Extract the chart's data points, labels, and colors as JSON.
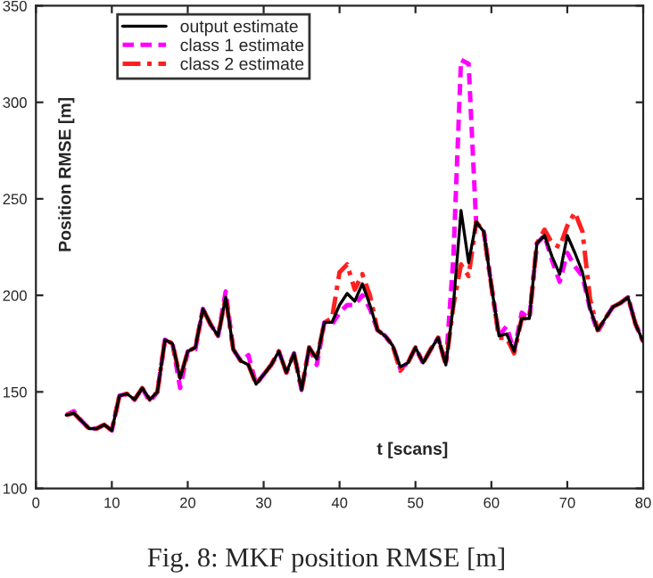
{
  "chart_data": {
    "type": "line",
    "xlabel": "t [scans]",
    "ylabel": "Position RMSE [m]",
    "x": [
      4,
      5,
      6,
      7,
      8,
      9,
      10,
      11,
      12,
      13,
      14,
      15,
      16,
      17,
      18,
      19,
      20,
      21,
      22,
      23,
      24,
      25,
      26,
      27,
      28,
      29,
      30,
      31,
      32,
      33,
      34,
      35,
      36,
      37,
      38,
      39,
      40,
      41,
      42,
      43,
      44,
      45,
      46,
      47,
      48,
      49,
      50,
      51,
      52,
      53,
      54,
      55,
      56,
      57,
      58,
      59,
      60,
      61,
      62,
      63,
      64,
      65,
      66,
      67,
      68,
      69,
      70,
      71,
      72,
      73,
      74,
      75,
      76,
      77,
      78,
      79,
      80
    ],
    "series": [
      {
        "name": "output estimate",
        "color": "#000000",
        "line_style": "solid",
        "values": [
          138,
          139,
          135,
          131,
          131,
          133,
          130,
          148,
          149,
          146,
          152,
          146,
          150,
          177,
          175,
          157,
          171,
          173,
          193,
          185,
          179,
          199,
          172,
          166,
          164,
          154,
          159,
          164,
          171,
          160,
          170,
          151,
          173,
          167,
          186,
          186,
          195,
          201,
          197,
          206,
          195,
          182,
          179,
          174,
          163,
          165,
          173,
          165,
          172,
          178,
          164,
          195,
          244,
          217,
          238,
          233,
          205,
          179,
          180,
          171,
          188,
          188,
          227,
          231,
          220,
          211,
          231,
          222,
          212,
          193,
          182,
          188,
          194,
          196,
          199,
          185,
          176
        ]
      },
      {
        "name": "class 1 estimate",
        "color": "#ff00ff",
        "line_style": "dashed",
        "values": [
          138,
          140,
          135,
          131,
          131,
          133,
          130,
          148,
          149,
          146,
          152,
          145,
          150,
          177,
          175,
          152,
          171,
          172,
          193,
          185,
          179,
          202,
          172,
          166,
          169,
          154,
          159,
          164,
          171,
          160,
          170,
          151,
          173,
          164,
          186,
          185,
          191,
          195,
          195,
          200,
          193,
          182,
          179,
          174,
          162,
          165,
          173,
          165,
          172,
          178,
          164,
          220,
          322,
          320,
          237,
          233,
          205,
          179,
          184,
          171,
          191,
          188,
          227,
          231,
          218,
          207,
          222,
          215,
          210,
          193,
          181,
          188,
          194,
          196,
          199,
          185,
          176
        ]
      },
      {
        "name": "class 2 estimate",
        "color": "#ff2020",
        "line_style": "dashdot",
        "values": [
          138,
          139,
          135,
          131,
          131,
          133,
          130,
          148,
          149,
          146,
          152,
          146,
          150,
          177,
          175,
          157,
          171,
          173,
          193,
          185,
          179,
          199,
          172,
          166,
          164,
          154,
          159,
          164,
          171,
          160,
          170,
          151,
          173,
          167,
          186,
          188,
          212,
          216,
          203,
          211,
          200,
          182,
          179,
          174,
          161,
          165,
          173,
          165,
          172,
          178,
          164,
          195,
          216,
          210,
          238,
          233,
          205,
          178,
          178,
          170,
          188,
          188,
          227,
          234,
          227,
          225,
          236,
          243,
          233,
          198,
          182,
          188,
          194,
          196,
          199,
          185,
          176
        ]
      }
    ],
    "xlim": [
      0,
      80
    ],
    "ylim": [
      100,
      350
    ],
    "xticks": [
      0,
      10,
      20,
      30,
      40,
      50,
      60,
      70,
      80
    ],
    "yticks": [
      100,
      150,
      200,
      250,
      300,
      350
    ],
    "grid": false,
    "legend": "top left",
    "marker": "none",
    "annotations": [
      "Fig. 8: MKF position RMSE [m]"
    ]
  }
}
